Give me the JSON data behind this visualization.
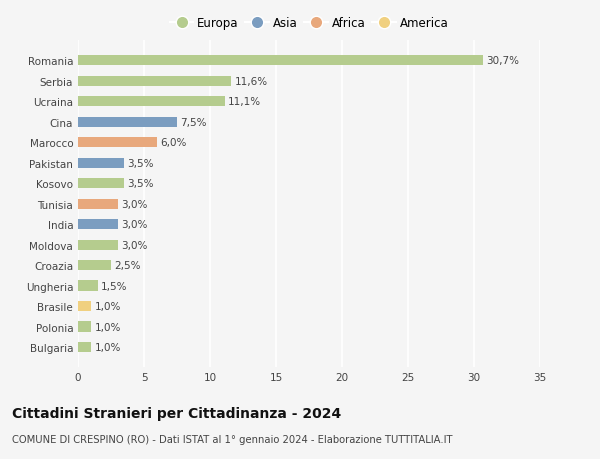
{
  "countries": [
    "Romania",
    "Serbia",
    "Ucraina",
    "Cina",
    "Marocco",
    "Pakistan",
    "Kosovo",
    "Tunisia",
    "India",
    "Moldova",
    "Croazia",
    "Ungheria",
    "Brasile",
    "Polonia",
    "Bulgaria"
  ],
  "values": [
    30.7,
    11.6,
    11.1,
    7.5,
    6.0,
    3.5,
    3.5,
    3.0,
    3.0,
    3.0,
    2.5,
    1.5,
    1.0,
    1.0,
    1.0
  ],
  "labels": [
    "30,7%",
    "11,6%",
    "11,1%",
    "7,5%",
    "6,0%",
    "3,5%",
    "3,5%",
    "3,0%",
    "3,0%",
    "3,0%",
    "2,5%",
    "1,5%",
    "1,0%",
    "1,0%",
    "1,0%"
  ],
  "continents": [
    "Europa",
    "Europa",
    "Europa",
    "Asia",
    "Africa",
    "Asia",
    "Europa",
    "Africa",
    "Asia",
    "Europa",
    "Europa",
    "Europa",
    "America",
    "Europa",
    "Europa"
  ],
  "colors": {
    "Europa": "#b5cc8e",
    "Asia": "#7b9dc0",
    "Africa": "#e8a87c",
    "America": "#f0d080"
  },
  "legend_order": [
    "Europa",
    "Asia",
    "Africa",
    "America"
  ],
  "xlim": [
    0,
    35
  ],
  "xticks": [
    0,
    5,
    10,
    15,
    20,
    25,
    30,
    35
  ],
  "title": "Cittadini Stranieri per Cittadinanza - 2024",
  "subtitle": "COMUNE DI CRESPINO (RO) - Dati ISTAT al 1° gennaio 2024 - Elaborazione TUTTITALIA.IT",
  "background_color": "#f5f5f5",
  "grid_color": "#ffffff",
  "bar_height": 0.5,
  "label_fontsize": 7.5,
  "tick_fontsize": 7.5,
  "title_fontsize": 10,
  "subtitle_fontsize": 7.2,
  "legend_fontsize": 8.5
}
